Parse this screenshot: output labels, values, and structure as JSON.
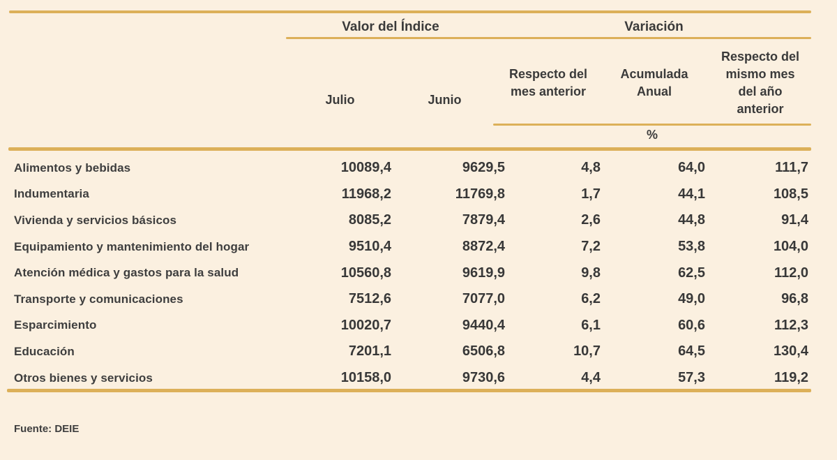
{
  "table": {
    "group_headers": {
      "index_value": "Valor del Índice",
      "variation": "Variación"
    },
    "columns": {
      "julio": "Julio",
      "junio": "Junio",
      "var_month": {
        "line1": "Respecto del",
        "line2": "mes anterior"
      },
      "var_accum": {
        "line1": "Acumulada",
        "line2": "Anual"
      },
      "var_year": {
        "line1": "Respecto del",
        "line2": "mismo mes",
        "line3": "del año",
        "line4": "anterior"
      },
      "unit": "%"
    },
    "rows": [
      {
        "category": "Alimentos y bebidas",
        "julio": "10089,4",
        "junio": "9629,5",
        "var_month": "4,8",
        "var_accum": "64,0",
        "var_year": "111,7"
      },
      {
        "category": "Indumentaria",
        "julio": "11968,2",
        "junio": "11769,8",
        "var_month": "1,7",
        "var_accum": "44,1",
        "var_year": "108,5"
      },
      {
        "category": "Vivienda y servicios básicos",
        "julio": "8085,2",
        "junio": "7879,4",
        "var_month": "2,6",
        "var_accum": "44,8",
        "var_year": "91,4"
      },
      {
        "category": "Equipamiento y mantenimiento del hogar",
        "julio": "9510,4",
        "junio": "8872,4",
        "var_month": "7,2",
        "var_accum": "53,8",
        "var_year": "104,0"
      },
      {
        "category": "Atención médica y gastos para la salud",
        "julio": "10560,8",
        "junio": "9619,9",
        "var_month": "9,8",
        "var_accum": "62,5",
        "var_year": "112,0"
      },
      {
        "category": "Transporte y comunicaciones",
        "julio": "7512,6",
        "junio": "7077,0",
        "var_month": "6,2",
        "var_accum": "49,0",
        "var_year": "96,8"
      },
      {
        "category": "Esparcimiento",
        "julio": "10020,7",
        "junio": "9440,4",
        "var_month": "6,1",
        "var_accum": "60,6",
        "var_year": "112,3"
      },
      {
        "category": "Educación",
        "julio": "7201,1",
        "junio": "6506,8",
        "var_month": "10,7",
        "var_accum": "64,5",
        "var_year": "130,4"
      },
      {
        "category": "Otros bienes y servicios",
        "julio": "10158,0",
        "junio": "9730,6",
        "var_month": "4,4",
        "var_accum": "57,3",
        "var_year": "119,2"
      }
    ]
  },
  "footer": {
    "source": "Fuente: DEIE"
  },
  "colors": {
    "background": "#FBF0E0",
    "rule": "#DCB059",
    "text": "#3D3D3D"
  }
}
